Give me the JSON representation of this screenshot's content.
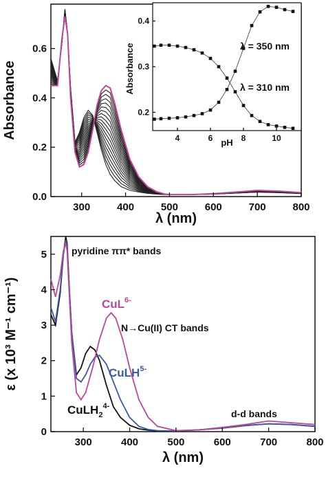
{
  "colors": {
    "black": "#111111",
    "magenta": "#c0449a",
    "blue": "#3a5aa8",
    "family": "#222222"
  },
  "chart_data": [
    {
      "type": "line",
      "xlabel": "λ (nm)",
      "ylabel": "Absorbance",
      "xlim": [
        230,
        800
      ],
      "ylim": [
        0,
        0.78
      ],
      "xticks": [
        "300",
        "400",
        "500",
        "600",
        "700",
        "800"
      ],
      "yticks": [
        "0.0",
        "0.2",
        "0.4",
        "0.6"
      ],
      "series": [
        {
          "x": [
            230,
            245,
            255,
            262,
            268,
            275,
            285,
            295,
            305,
            315,
            325,
            335,
            345,
            355,
            365,
            375,
            390,
            410,
            430,
            450,
            470,
            490,
            500,
            550,
            600,
            650,
            700,
            750,
            800
          ],
          "y": [
            0.56,
            0.47,
            0.62,
            0.76,
            0.66,
            0.44,
            0.22,
            0.26,
            0.32,
            0.35,
            0.33,
            0.26,
            0.19,
            0.13,
            0.09,
            0.065,
            0.04,
            0.025,
            0.018,
            0.013,
            0.01,
            0.008,
            0.008,
            0.008,
            0.01,
            0.014,
            0.018,
            0.016,
            0.012
          ]
        },
        {
          "x": [
            230,
            245,
            255,
            262,
            268,
            275,
            285,
            295,
            305,
            315,
            325,
            335,
            345,
            355,
            365,
            375,
            390,
            410,
            430,
            450,
            470,
            490,
            500,
            550,
            600,
            650,
            700,
            750,
            800
          ],
          "y": [
            0.45,
            0.45,
            0.64,
            0.73,
            0.66,
            0.4,
            0.18,
            0.12,
            0.13,
            0.18,
            0.27,
            0.37,
            0.43,
            0.45,
            0.44,
            0.38,
            0.27,
            0.15,
            0.08,
            0.04,
            0.02,
            0.01,
            0.008,
            0.008,
            0.012,
            0.018,
            0.025,
            0.022,
            0.016
          ]
        }
      ]
    },
    {
      "type": "line",
      "xlabel": "pH",
      "ylabel": "Absorbance",
      "xlim": [
        2.5,
        11.5
      ],
      "ylim": [
        0.16,
        0.44
      ],
      "xticks": [
        "4",
        "6",
        "8",
        "10"
      ],
      "yticks": [
        "0.2",
        "0.3",
        "0.4"
      ],
      "annotations": [
        "λ = 350 nm",
        "λ = 310 nm"
      ],
      "series": [
        {
          "name": "λ = 350 nm",
          "x": [
            2.6,
            3.0,
            3.5,
            4.0,
            4.5,
            5.0,
            5.5,
            6.0,
            6.5,
            7.0,
            7.5,
            8.0,
            8.5,
            9.0,
            9.5,
            10.0,
            10.5,
            11.0
          ],
          "y": [
            0.185,
            0.186,
            0.187,
            0.188,
            0.19,
            0.193,
            0.197,
            0.205,
            0.222,
            0.25,
            0.29,
            0.34,
            0.39,
            0.42,
            0.432,
            0.43,
            0.425,
            0.421
          ]
        },
        {
          "name": "λ = 310 nm",
          "x": [
            2.6,
            3.0,
            3.5,
            4.0,
            4.5,
            5.0,
            5.5,
            6.0,
            6.5,
            7.0,
            7.5,
            8.0,
            8.5,
            9.0,
            9.5,
            10.0,
            10.5,
            11.0
          ],
          "y": [
            0.345,
            0.347,
            0.347,
            0.345,
            0.342,
            0.337,
            0.33,
            0.318,
            0.3,
            0.275,
            0.245,
            0.215,
            0.193,
            0.18,
            0.173,
            0.17,
            0.167,
            0.165
          ]
        }
      ]
    },
    {
      "type": "line",
      "xlabel": "λ (nm)",
      "ylabel": "ε (x 10³ M⁻¹ cm⁻¹)",
      "xlim": [
        230,
        800
      ],
      "ylim": [
        0,
        5.5
      ],
      "xticks": [
        "300",
        "400",
        "500",
        "600",
        "700",
        "800"
      ],
      "yticks": [
        "0",
        "1",
        "2",
        "3",
        "4",
        "5"
      ],
      "annotations": [
        "pyridine ππ* bands",
        "N→Cu(II) CT bands",
        "d-d bands"
      ],
      "labels": {
        "cul": {
          "base": "CuL",
          "sup": "6-"
        },
        "culh": {
          "base": "CuLH",
          "sup": "5-"
        },
        "culh2": {
          "base": "CuLH",
          "sub": "2",
          "sup": "4-"
        }
      },
      "series": [
        {
          "name": "CuLH2 4-",
          "x": [
            230,
            240,
            250,
            257,
            262,
            265,
            270,
            275,
            285,
            295,
            305,
            315,
            325,
            335,
            350,
            365,
            380,
            400,
            420,
            440,
            460,
            500,
            550,
            600,
            650,
            700,
            750,
            800
          ],
          "y": [
            3.3,
            3.0,
            3.9,
            5.0,
            5.5,
            5.3,
            4.0,
            2.8,
            1.6,
            1.8,
            2.2,
            2.4,
            2.3,
            2.0,
            1.3,
            0.7,
            0.4,
            0.18,
            0.08,
            0.04,
            0.02,
            0.02,
            0.05,
            0.1,
            0.17,
            0.22,
            0.2,
            0.15
          ]
        },
        {
          "name": "CuLH 5-",
          "x": [
            230,
            240,
            250,
            257,
            262,
            265,
            270,
            275,
            285,
            295,
            305,
            315,
            325,
            335,
            350,
            365,
            380,
            400,
            420,
            440,
            460,
            500,
            550,
            600,
            650,
            700,
            750,
            800
          ],
          "y": [
            3.5,
            3.1,
            4.0,
            5.0,
            5.4,
            5.2,
            4.0,
            2.8,
            1.5,
            1.4,
            1.6,
            1.9,
            2.1,
            2.15,
            1.9,
            1.4,
            0.9,
            0.4,
            0.15,
            0.06,
            0.03,
            0.02,
            0.05,
            0.1,
            0.17,
            0.22,
            0.2,
            0.15
          ]
        },
        {
          "name": "CuL 6-",
          "x": [
            230,
            240,
            250,
            257,
            262,
            265,
            270,
            275,
            285,
            295,
            305,
            320,
            335,
            350,
            360,
            370,
            385,
            400,
            420,
            440,
            460,
            500,
            550,
            600,
            650,
            700,
            750,
            800
          ],
          "y": [
            4.3,
            3.8,
            4.4,
            5.1,
            5.3,
            5.1,
            3.8,
            2.5,
            1.1,
            0.9,
            1.1,
            1.8,
            2.6,
            3.2,
            3.35,
            3.2,
            2.6,
            1.8,
            0.9,
            0.4,
            0.15,
            0.03,
            0.05,
            0.12,
            0.2,
            0.3,
            0.25,
            0.2
          ]
        }
      ]
    }
  ]
}
